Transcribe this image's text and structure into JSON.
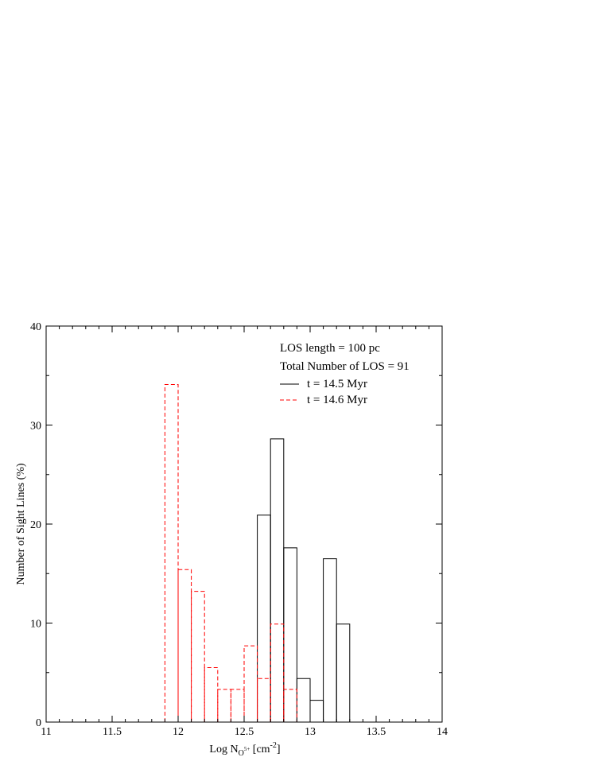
{
  "chart_data": {
    "type": "bar",
    "title": "",
    "xlabel": {
      "prefix": "Log N",
      "subscript": "O",
      "subscript_sup": "5+",
      "suffix": " [cm",
      "suffix_sup": "-2",
      "suffix_end": "]"
    },
    "ylabel": "Number of Sight Lines (%)",
    "xlim": [
      11,
      14
    ],
    "ylim": [
      0,
      40
    ],
    "x_ticks": [
      "11",
      "11.5",
      "12",
      "12.5",
      "13",
      "13.5",
      "14"
    ],
    "y_ticks": [
      "0",
      "10",
      "20",
      "30",
      "40"
    ],
    "annotations": [
      "LOS length = 100 pc",
      "Total Number of LOS = 91"
    ],
    "grid": false,
    "legend_position": "top-right",
    "series": [
      {
        "name": "t = 14.5 Myr",
        "color": "#000000",
        "line_style": "solid",
        "bin_width": 0.1,
        "bins": [
          {
            "x0": 12.6,
            "value": 20.9
          },
          {
            "x0": 12.7,
            "value": 28.6
          },
          {
            "x0": 12.8,
            "value": 17.6
          },
          {
            "x0": 12.9,
            "value": 4.4
          },
          {
            "x0": 13.0,
            "value": 2.2
          },
          {
            "x0": 13.1,
            "value": 16.5
          },
          {
            "x0": 13.2,
            "value": 9.9
          }
        ]
      },
      {
        "name": "t = 14.6 Myr",
        "color": "#ff0000",
        "line_style": "dashed",
        "bin_width": 0.1,
        "bins": [
          {
            "x0": 11.9,
            "value": 34.1
          },
          {
            "x0": 12.0,
            "value": 15.4
          },
          {
            "x0": 12.1,
            "value": 13.2
          },
          {
            "x0": 12.2,
            "value": 5.5
          },
          {
            "x0": 12.3,
            "value": 3.3
          },
          {
            "x0": 12.4,
            "value": 3.3
          },
          {
            "x0": 12.5,
            "value": 7.7
          },
          {
            "x0": 12.6,
            "value": 4.4
          },
          {
            "x0": 12.7,
            "value": 9.9
          },
          {
            "x0": 12.8,
            "value": 3.3
          }
        ]
      }
    ]
  }
}
